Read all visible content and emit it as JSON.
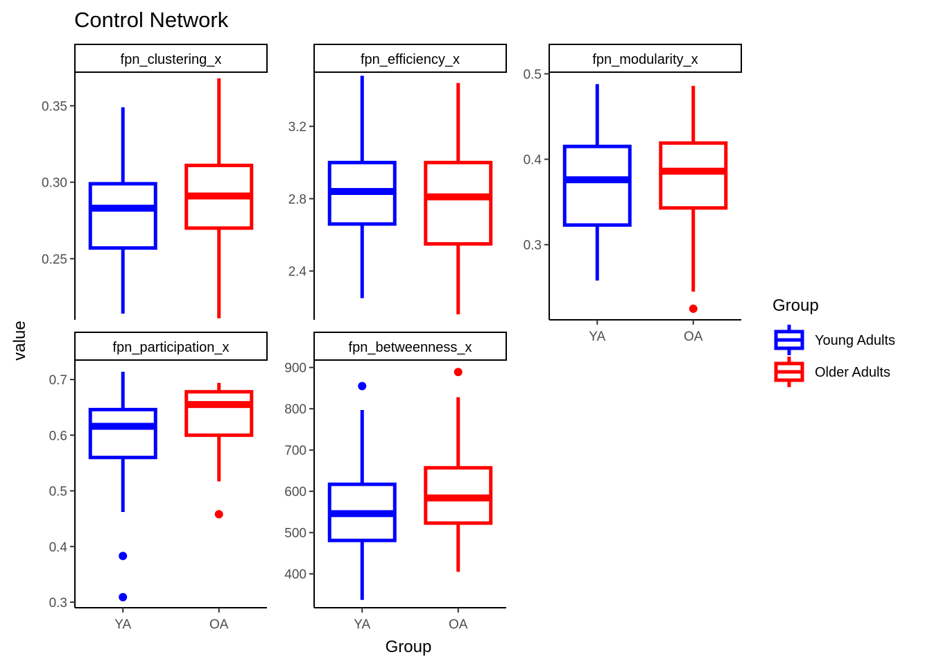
{
  "chart_data": {
    "type": "boxplot",
    "title": "Control Network",
    "xlabel": "Group",
    "ylabel": "value",
    "categories": [
      "YA",
      "OA"
    ],
    "legend": {
      "title": "Group",
      "position": "right",
      "entries": [
        {
          "label": "Young Adults",
          "color": "#0000ff"
        },
        {
          "label": "Older Adults",
          "color": "#ff0000"
        }
      ]
    },
    "grid": false,
    "panels": [
      {
        "strip": "fpn_clustering_x",
        "ylim": [
          0.21,
          0.372
        ],
        "yticks": [
          0.25,
          0.3,
          0.35
        ],
        "ytick_labels": [
          "0.25",
          "0.30",
          "0.35"
        ],
        "boxes": [
          {
            "category": "YA",
            "color": "#0000ff",
            "whisker_low": 0.214,
            "q1": 0.257,
            "median": 0.283,
            "q3": 0.299,
            "whisker_high": 0.349,
            "outliers": []
          },
          {
            "category": "OA",
            "color": "#ff0000",
            "whisker_low": 0.211,
            "q1": 0.27,
            "median": 0.291,
            "q3": 0.311,
            "whisker_high": 0.368,
            "outliers": []
          }
        ]
      },
      {
        "strip": "fpn_efficiency_x",
        "ylim": [
          2.13,
          3.5
        ],
        "yticks": [
          2.4,
          2.8,
          3.2
        ],
        "ytick_labels": [
          "2.4",
          "2.8",
          "3.2"
        ],
        "boxes": [
          {
            "category": "YA",
            "color": "#0000ff",
            "whisker_low": 2.25,
            "q1": 2.66,
            "median": 2.84,
            "q3": 3.0,
            "whisker_high": 3.48,
            "outliers": []
          },
          {
            "category": "OA",
            "color": "#ff0000",
            "whisker_low": 2.16,
            "q1": 2.55,
            "median": 2.81,
            "q3": 3.0,
            "whisker_high": 3.44,
            "outliers": []
          }
        ]
      },
      {
        "strip": "fpn_modularity_x",
        "ylim": [
          0.212,
          0.502
        ],
        "yticks": [
          0.3,
          0.4,
          0.5
        ],
        "ytick_labels": [
          "0.3",
          "0.4",
          "0.5"
        ],
        "boxes": [
          {
            "category": "YA",
            "color": "#0000ff",
            "whisker_low": 0.258,
            "q1": 0.323,
            "median": 0.376,
            "q3": 0.415,
            "whisker_high": 0.488,
            "outliers": []
          },
          {
            "category": "OA",
            "color": "#ff0000",
            "whisker_low": 0.245,
            "q1": 0.343,
            "median": 0.386,
            "q3": 0.419,
            "whisker_high": 0.486,
            "outliers": [
              0.225
            ]
          }
        ]
      },
      {
        "strip": "fpn_participation_x",
        "ylim": [
          0.29,
          0.735
        ],
        "yticks": [
          0.3,
          0.4,
          0.5,
          0.6,
          0.7
        ],
        "ytick_labels": [
          "0.3",
          "0.4",
          "0.5",
          "0.6",
          "0.7"
        ],
        "boxes": [
          {
            "category": "YA",
            "color": "#0000ff",
            "whisker_low": 0.462,
            "q1": 0.56,
            "median": 0.616,
            "q3": 0.646,
            "whisker_high": 0.714,
            "outliers": [
              0.383,
              0.309
            ]
          },
          {
            "category": "OA",
            "color": "#ff0000",
            "whisker_low": 0.517,
            "q1": 0.6,
            "median": 0.655,
            "q3": 0.678,
            "whisker_high": 0.694,
            "outliers": [
              0.458
            ]
          }
        ]
      },
      {
        "strip": "fpn_betweenness_x",
        "ylim": [
          318,
          918
        ],
        "yticks": [
          400,
          500,
          600,
          700,
          800,
          900
        ],
        "ytick_labels": [
          "400",
          "500",
          "600",
          "700",
          "800",
          "900"
        ],
        "boxes": [
          {
            "category": "YA",
            "color": "#0000ff",
            "whisker_low": 337,
            "q1": 481,
            "median": 546,
            "q3": 617,
            "whisker_high": 797,
            "outliers": [
              855
            ]
          },
          {
            "category": "OA",
            "color": "#ff0000",
            "whisker_low": 405,
            "q1": 523,
            "median": 584,
            "q3": 657,
            "whisker_high": 828,
            "outliers": [
              889
            ]
          }
        ]
      }
    ]
  }
}
